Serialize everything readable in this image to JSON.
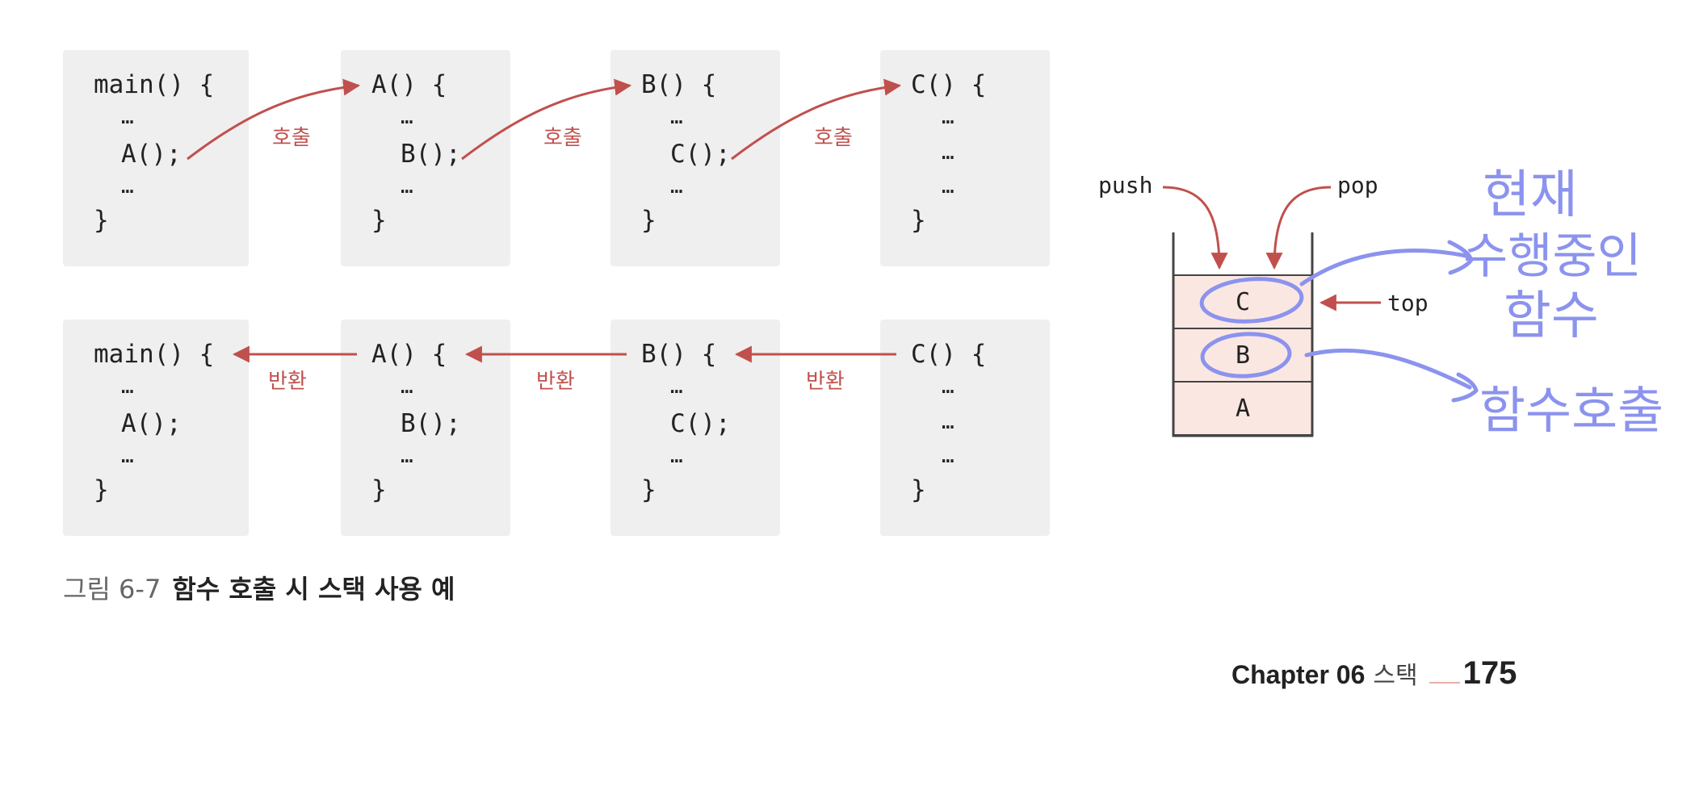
{
  "rows": {
    "call": {
      "arrow_label": "호출",
      "boxes": [
        {
          "header": "main() {",
          "line2": "…",
          "line3": "A();",
          "line4": "…",
          "close": "}"
        },
        {
          "header": "A() {",
          "line2": "…",
          "line3": "B();",
          "line4": "…",
          "close": "}"
        },
        {
          "header": "B() {",
          "line2": "…",
          "line3": "C();",
          "line4": "…",
          "close": "}"
        },
        {
          "header": "C() {",
          "line2": "…",
          "line3": "…",
          "line4": "…",
          "close": "}"
        }
      ]
    },
    "return": {
      "arrow_label": "반환",
      "boxes": [
        {
          "header": "main() {",
          "line2": "…",
          "line3": "A();",
          "line4": "…",
          "close": "}"
        },
        {
          "header": "A() {",
          "line2": "…",
          "line3": "B();",
          "line4": "…",
          "close": "}"
        },
        {
          "header": "B() {",
          "line2": "…",
          "line3": "C();",
          "line4": "…",
          "close": "}"
        },
        {
          "header": "C() {",
          "line2": "…",
          "line3": "…",
          "line4": "…",
          "close": "}"
        }
      ]
    }
  },
  "stack": {
    "push_label": "push",
    "pop_label": "pop",
    "top_label": "top",
    "cells": [
      "C",
      "B",
      "A"
    ]
  },
  "annotations": {
    "current_line1": "현재",
    "current_line2": "수행중인",
    "current_line3": "함수",
    "call_note": "함수호출"
  },
  "caption": {
    "number": "그림 6-7",
    "text": "함수 호출 시 스택 사용 예"
  },
  "footer": {
    "chapter": "Chapter 06",
    "section": "스택",
    "page": "175"
  },
  "colors": {
    "arrow": "#c0504d",
    "box_bg": "#efefef",
    "cell_fill": "#fbe7e2",
    "handwriting": "#8b93ee"
  }
}
